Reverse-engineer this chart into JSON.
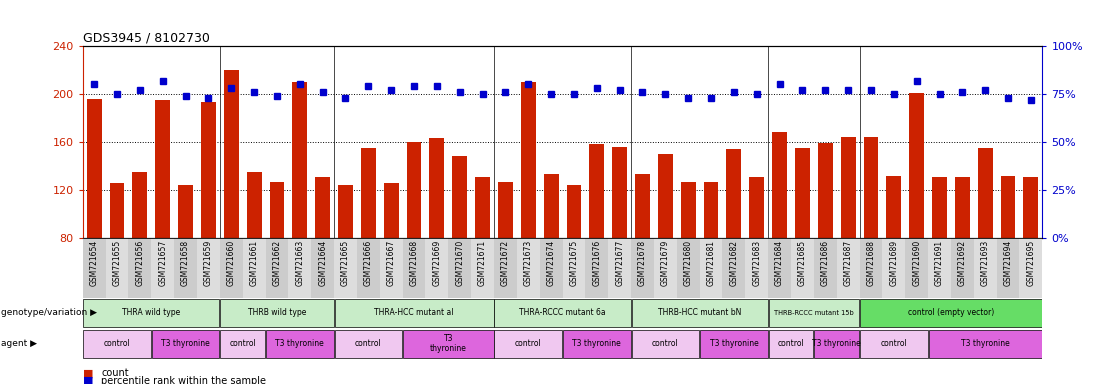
{
  "title": "GDS3945 / 8102730",
  "samples": [
    "GSM721654",
    "GSM721655",
    "GSM721656",
    "GSM721657",
    "GSM721658",
    "GSM721659",
    "GSM721660",
    "GSM721661",
    "GSM721662",
    "GSM721663",
    "GSM721664",
    "GSM721665",
    "GSM721666",
    "GSM721667",
    "GSM721668",
    "GSM721669",
    "GSM721670",
    "GSM721671",
    "GSM721672",
    "GSM721673",
    "GSM721674",
    "GSM721675",
    "GSM721676",
    "GSM721677",
    "GSM721678",
    "GSM721679",
    "GSM721680",
    "GSM721681",
    "GSM721682",
    "GSM721683",
    "GSM721684",
    "GSM721685",
    "GSM721686",
    "GSM721687",
    "GSM721688",
    "GSM721689",
    "GSM721690",
    "GSM721691",
    "GSM721692",
    "GSM721693",
    "GSM721694",
    "GSM721695"
  ],
  "counts": [
    196,
    126,
    135,
    195,
    124,
    193,
    220,
    135,
    127,
    210,
    131,
    124,
    155,
    126,
    160,
    163,
    148,
    131,
    127,
    210,
    133,
    124,
    158,
    156,
    133,
    150,
    127,
    127,
    154,
    131,
    168,
    155,
    159,
    164,
    164,
    132,
    201,
    131,
    131,
    155,
    132,
    131
  ],
  "percentile_ranks": [
    80,
    75,
    77,
    82,
    74,
    73,
    78,
    76,
    74,
    80,
    76,
    73,
    79,
    77,
    79,
    79,
    76,
    75,
    76,
    80,
    75,
    75,
    78,
    77,
    76,
    75,
    73,
    73,
    76,
    75,
    80,
    77,
    77,
    77,
    77,
    75,
    82,
    75,
    76,
    77,
    73,
    72
  ],
  "ylim_left": [
    80,
    240
  ],
  "ylim_right": [
    0,
    100
  ],
  "yticks_left": [
    80,
    120,
    160,
    200,
    240
  ],
  "yticks_right": [
    0,
    25,
    50,
    75,
    100
  ],
  "bar_color": "#cc2200",
  "dot_color": "#0000cc",
  "genotype_groups": [
    {
      "label": "THRA wild type",
      "start": 0,
      "end": 6,
      "color": "#c8ecc8"
    },
    {
      "label": "THRB wild type",
      "start": 6,
      "end": 11,
      "color": "#c8ecc8"
    },
    {
      "label": "THRA-HCC mutant al",
      "start": 11,
      "end": 18,
      "color": "#c8ecc8"
    },
    {
      "label": "THRA-RCCC mutant 6a",
      "start": 18,
      "end": 24,
      "color": "#c8ecc8"
    },
    {
      "label": "THRB-HCC mutant bN",
      "start": 24,
      "end": 30,
      "color": "#c8ecc8"
    },
    {
      "label": "THRB-RCCC mutant 15b",
      "start": 30,
      "end": 34,
      "color": "#c8ecc8"
    },
    {
      "label": "control (empty vector)",
      "start": 34,
      "end": 42,
      "color": "#66dd66"
    }
  ],
  "agent_groups": [
    {
      "label": "control",
      "start": 0,
      "end": 3,
      "color": "#f0c8f0"
    },
    {
      "label": "T3 thyronine",
      "start": 3,
      "end": 6,
      "color": "#dd66dd"
    },
    {
      "label": "control",
      "start": 6,
      "end": 8,
      "color": "#f0c8f0"
    },
    {
      "label": "T3 thyronine",
      "start": 8,
      "end": 11,
      "color": "#dd66dd"
    },
    {
      "label": "control",
      "start": 11,
      "end": 14,
      "color": "#f0c8f0"
    },
    {
      "label": "T3\nthyronine",
      "start": 14,
      "end": 18,
      "color": "#dd66dd"
    },
    {
      "label": "control",
      "start": 18,
      "end": 21,
      "color": "#f0c8f0"
    },
    {
      "label": "T3 thyronine",
      "start": 21,
      "end": 24,
      "color": "#dd66dd"
    },
    {
      "label": "control",
      "start": 24,
      "end": 27,
      "color": "#f0c8f0"
    },
    {
      "label": "T3 thyronine",
      "start": 27,
      "end": 30,
      "color": "#dd66dd"
    },
    {
      "label": "control",
      "start": 30,
      "end": 32,
      "color": "#f0c8f0"
    },
    {
      "label": "T3 thyronine",
      "start": 32,
      "end": 34,
      "color": "#dd66dd"
    },
    {
      "label": "control",
      "start": 34,
      "end": 37,
      "color": "#f0c8f0"
    },
    {
      "label": "T3 thyronine",
      "start": 37,
      "end": 42,
      "color": "#dd66dd"
    }
  ],
  "bg_color": "#ffffff",
  "label_bg_even": "#cccccc",
  "label_bg_odd": "#dddddd",
  "bar_color_hex": "#cc2200",
  "dot_color_hex": "#0000cc"
}
